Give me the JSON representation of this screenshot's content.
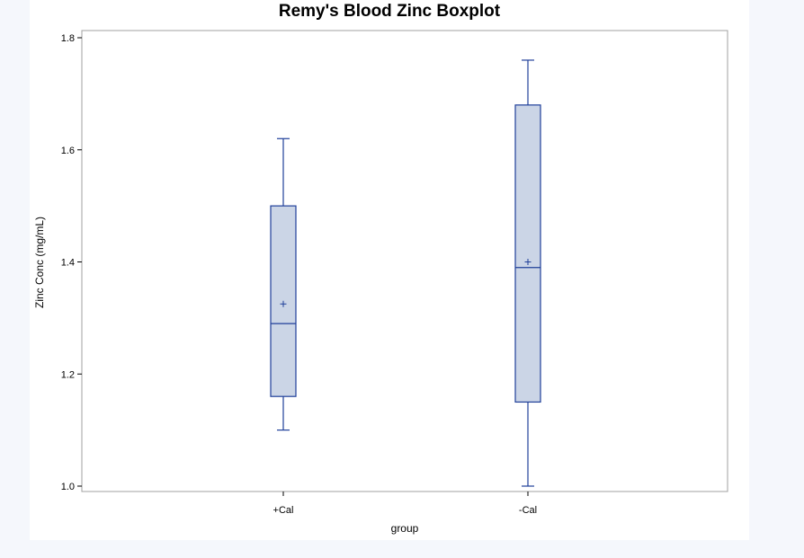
{
  "chart_data": {
    "type": "boxplot",
    "title": "Remy's Blood Zinc Boxplot",
    "xlabel": "group",
    "ylabel": "Zinc Conc (mg/mL)",
    "ylim": [
      1.0,
      1.8
    ],
    "yticks": [
      "1.0",
      "1.2",
      "1.4",
      "1.6",
      "1.8"
    ],
    "grid": false,
    "categories": [
      "+Cal",
      "-Cal"
    ],
    "boxes": [
      {
        "category": "+Cal",
        "min": 1.1,
        "q1": 1.16,
        "median": 1.29,
        "mean": 1.325,
        "q3": 1.5,
        "max": 1.62
      },
      {
        "category": "-Cal",
        "min": 1.0,
        "q1": 1.15,
        "median": 1.39,
        "mean": 1.4,
        "q3": 1.68,
        "max": 1.76
      }
    ],
    "colors": {
      "box_fill": "#cbd5e6",
      "box_stroke": "#1f3f99",
      "frame": "#a0a0a0"
    }
  }
}
